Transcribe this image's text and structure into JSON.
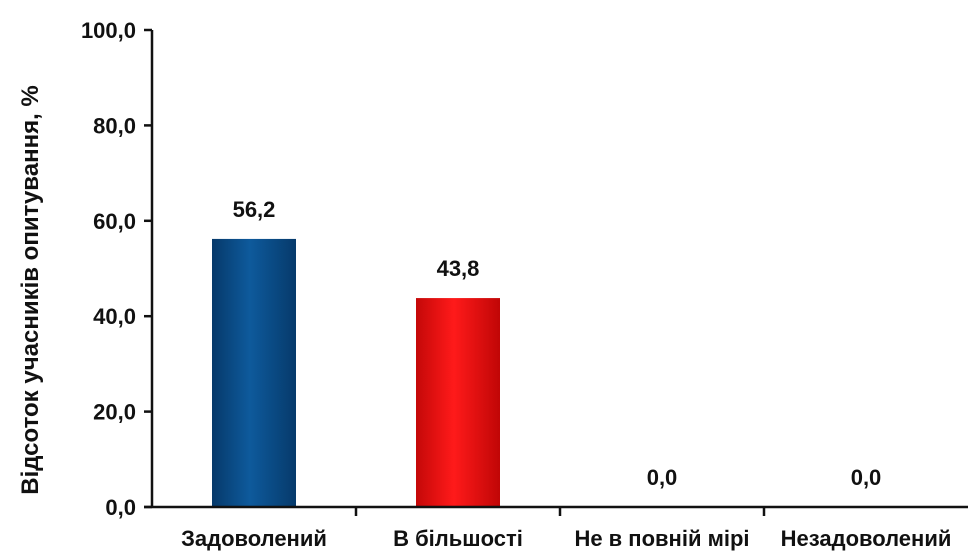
{
  "chart_data": {
    "type": "bar",
    "title": "",
    "xlabel": "",
    "ylabel": "Відсоток учасників опитування, %",
    "categories": [
      "Задоволений",
      "В більшості",
      "Не в повній мірі",
      "Незадоволений"
    ],
    "values": [
      56.2,
      43.8,
      0.0,
      0.0
    ],
    "value_labels": [
      "56,2",
      "43,8",
      "0,0",
      "0,0"
    ],
    "bar_colors": [
      "#0a4f8c",
      "#e81212",
      "#0a4f8c",
      "#0a4f8c"
    ],
    "ylim": [
      0,
      100
    ],
    "yticks": [
      0,
      20,
      40,
      60,
      80,
      100
    ],
    "ytick_labels": [
      "0,0",
      "20,0",
      "40,0",
      "60,0",
      "80,0",
      "100,0"
    ],
    "grid": false,
    "legend": "none"
  }
}
